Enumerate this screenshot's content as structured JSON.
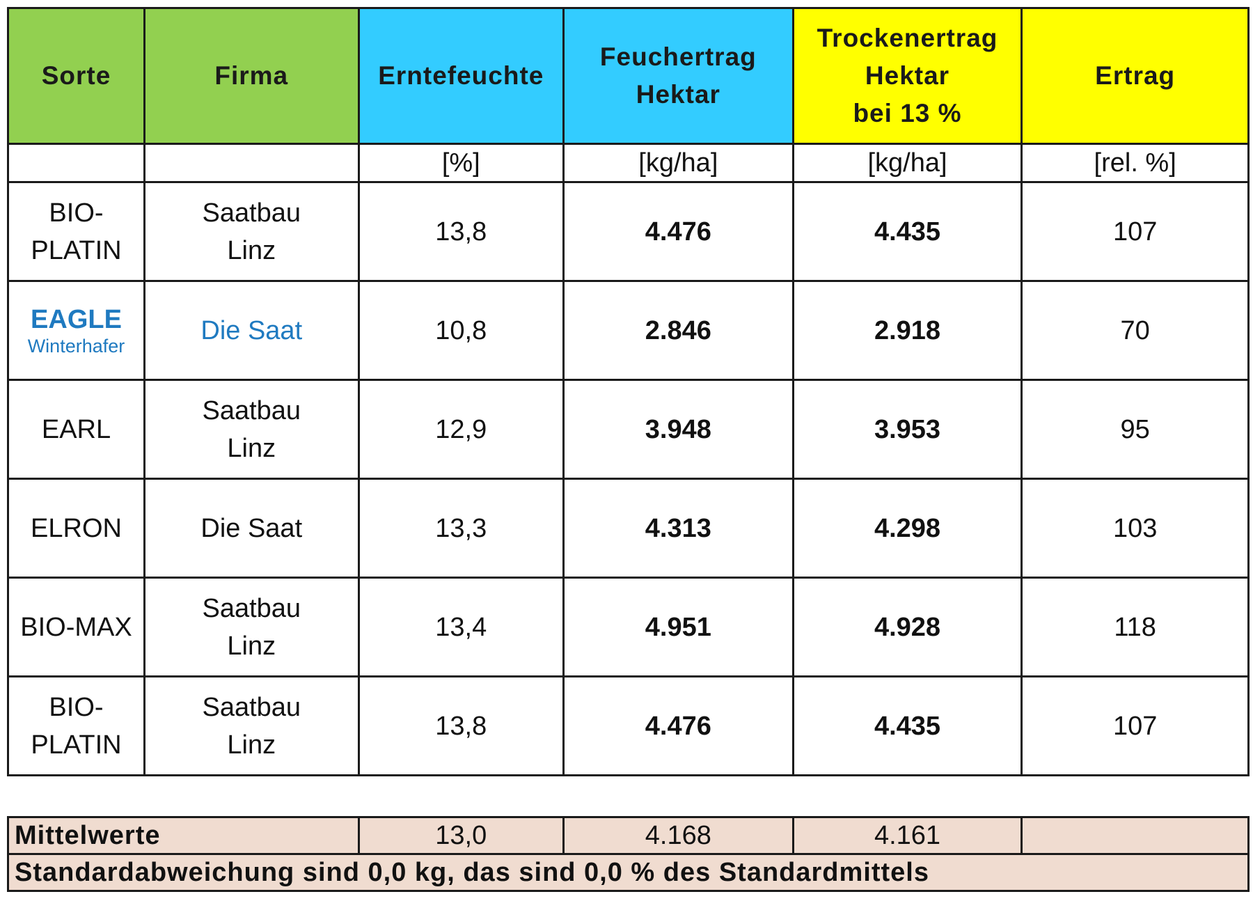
{
  "headers": {
    "sorte": "Sorte",
    "firma": "Firma",
    "erntefeuchte": "Erntefeuchte",
    "feuchertrag": [
      "Feuchertrag",
      "Hektar"
    ],
    "trockenertrag": [
      "Trockenertrag",
      "Hektar",
      "bei 13 %"
    ],
    "ertrag": "Ertrag"
  },
  "units": {
    "sorte": "",
    "firma": "",
    "erntefeuchte": "[%]",
    "feuchertrag": "[kg/ha]",
    "trockenertrag": "[kg/ha]",
    "ertrag": "[rel. %]"
  },
  "rows": [
    {
      "sorte": [
        "BIO-",
        "PLATIN"
      ],
      "firma": [
        "Saatbau",
        "Linz"
      ],
      "erntefeuchte": "13,8",
      "feuchertrag": "4.476",
      "trockenertrag": "4.435",
      "ertrag": "107"
    },
    {
      "sorte": [
        "EAGLE",
        "Winterhafer"
      ],
      "firma": [
        "Die Saat"
      ],
      "erntefeuchte": "10,8",
      "feuchertrag": "2.846",
      "trockenertrag": "2.918",
      "ertrag": "70"
    },
    {
      "sorte": [
        "EARL"
      ],
      "firma": [
        "Saatbau",
        "Linz"
      ],
      "erntefeuchte": "12,9",
      "feuchertrag": "3.948",
      "trockenertrag": "3.953",
      "ertrag": "95"
    },
    {
      "sorte": [
        "ELRON"
      ],
      "firma": [
        "Die Saat"
      ],
      "erntefeuchte": "13,3",
      "feuchertrag": "4.313",
      "trockenertrag": "4.298",
      "ertrag": "103"
    },
    {
      "sorte": [
        "BIO-MAX"
      ],
      "firma": [
        "Saatbau",
        "Linz"
      ],
      "erntefeuchte": "13,4",
      "feuchertrag": "4.951",
      "trockenertrag": "4.928",
      "ertrag": "118"
    },
    {
      "sorte": [
        "BIO-",
        "PLATIN"
      ],
      "firma": [
        "Saatbau",
        "Linz"
      ],
      "erntefeuchte": "13,8",
      "feuchertrag": "4.476",
      "trockenertrag": "4.435",
      "ertrag": "107"
    }
  ],
  "summary": {
    "label": "Mittelwerte",
    "erntefeuchte": "13,0",
    "feuchertrag": "4.168",
    "trockenertrag": "4.161",
    "ertrag": "",
    "note": "Standardabweichung sind 0,0 kg, das sind 0,0 % des Standardmittels"
  },
  "colors": {
    "header_green": "#92d050",
    "header_cyan": "#33ccff",
    "header_yellow": "#ffff00",
    "highlight_text_blue": "#1f7ac0",
    "summary_background": "#f0dcd0"
  }
}
